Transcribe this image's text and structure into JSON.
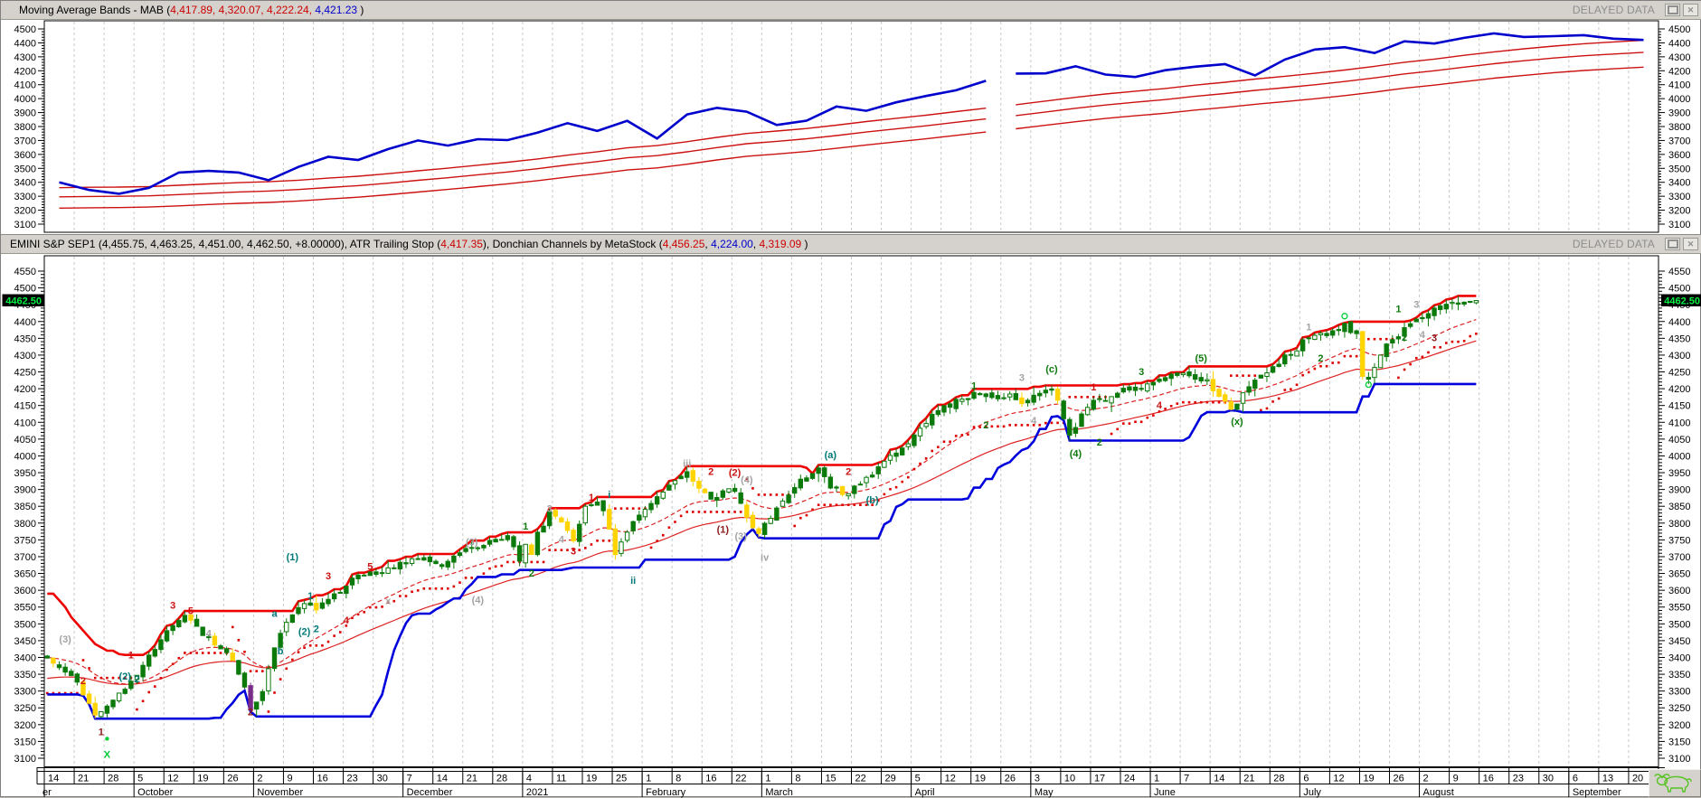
{
  "window": {
    "delayed_data": "DELAYED DATA",
    "restore_button": "restore",
    "close_button": "close",
    "panel1_title_segments": [
      {
        "text": "Moving Average Bands - MAB (",
        "color": "#000000"
      },
      {
        "text": "4,417.89, 4,320.07, 4,222.24,",
        "color": "#cc0000"
      },
      {
        "text": " 4,421.23",
        "color": "#0000cc"
      },
      {
        "text": " )",
        "color": "#000000"
      }
    ],
    "panel2_title_segments": [
      {
        "text": "EMINI S&P SEP1 (4,455.75, 4,463.25, 4,451.00, 4,462.50, +8.00000), ATR Trailing Stop (",
        "color": "#000000"
      },
      {
        "text": "4,417.35",
        "color": "#cc0000"
      },
      {
        "text": "), Donchian Channels by MetaStock (",
        "color": "#000000"
      },
      {
        "text": "4,456.25",
        "color": "#cc0000"
      },
      {
        "text": ", ",
        "color": "#000000"
      },
      {
        "text": "4,224.00",
        "color": "#0000cc"
      },
      {
        "text": ", ",
        "color": "#000000"
      },
      {
        "text": "4,319.09",
        "color": "#cc0000"
      },
      {
        "text": " )",
        "color": "#000000"
      }
    ]
  },
  "chart_data": [
    {
      "panel": "upper",
      "type": "line",
      "title": "Moving Average Bands - MAB",
      "ylim": [
        3100,
        4500
      ],
      "ytick_step": 100,
      "ytick_minor": 20,
      "grid": "weekly-vertical-dashed",
      "weeks": 54,
      "gap_after_index": 31,
      "series": [
        {
          "name": "close",
          "color": "#0000cc",
          "width": 2.6,
          "values": [
            3400,
            3345,
            3318,
            3360,
            3470,
            3482,
            3470,
            3415,
            3510,
            3583,
            3560,
            3638,
            3700,
            3663,
            3709,
            3703,
            3756,
            3824,
            3768,
            3841,
            3714,
            3886,
            3934,
            3906,
            3811,
            3842,
            3943,
            3913,
            3974,
            4019,
            4060,
            4128,
            4180,
            4181,
            4232,
            4173,
            4155,
            4204,
            4229,
            4247,
            4166,
            4280,
            4352,
            4369,
            4327,
            4411,
            4395,
            4436,
            4468,
            4442,
            4448,
            4455,
            4430,
            4421
          ]
        },
        {
          "name": "mab-bands",
          "color": "#cc1111",
          "width": 1.4,
          "sma_period": 20,
          "sma_seed": 3290,
          "upper_pct": 1.02,
          "lower_pct": 0.9755,
          "last_values": {
            "upper": 4417.89,
            "mid": 4320.07,
            "lower": 4222.24
          }
        }
      ],
      "last_close": 4421.23
    },
    {
      "panel": "lower",
      "type": "candlestick",
      "title": "EMINI S&P SEP1",
      "last_bar": {
        "open": 4455.75,
        "high": 4463.25,
        "low": 4451.0,
        "close": 4462.5,
        "change": "+8.00000"
      },
      "ylim": [
        3100,
        4550
      ],
      "ytick_step": 50,
      "ytick_minor": 10,
      "grid": "weekly-vertical-dashed",
      "bars": 240,
      "slots": 270,
      "close_anchors": [
        [
          0,
          3395
        ],
        [
          3,
          3355
        ],
        [
          5,
          3330
        ],
        [
          8,
          3228
        ],
        [
          10,
          3252
        ],
        [
          13,
          3312
        ],
        [
          15,
          3352
        ],
        [
          18,
          3425
        ],
        [
          20,
          3482
        ],
        [
          23,
          3532
        ],
        [
          26,
          3470
        ],
        [
          29,
          3422
        ],
        [
          31,
          3392
        ],
        [
          33,
          3308
        ],
        [
          34,
          3242
        ],
        [
          36,
          3300
        ],
        [
          38,
          3425
        ],
        [
          40,
          3512
        ],
        [
          43,
          3562
        ],
        [
          45,
          3548
        ],
        [
          48,
          3582
        ],
        [
          51,
          3635
        ],
        [
          54,
          3648
        ],
        [
          57,
          3662
        ],
        [
          60,
          3682
        ],
        [
          63,
          3702
        ],
        [
          66,
          3672
        ],
        [
          69,
          3712
        ],
        [
          72,
          3732
        ],
        [
          75,
          3745
        ],
        [
          77,
          3756
        ],
        [
          79,
          3690
        ],
        [
          80,
          3730
        ],
        [
          81,
          3700
        ],
        [
          82,
          3772
        ],
        [
          84,
          3826
        ],
        [
          86,
          3800
        ],
        [
          88,
          3750
        ],
        [
          90,
          3855
        ],
        [
          92,
          3862
        ],
        [
          93,
          3840
        ],
        [
          95,
          3714
        ],
        [
          97,
          3770
        ],
        [
          99,
          3826
        ],
        [
          101,
          3852
        ],
        [
          103,
          3890
        ],
        [
          105,
          3934
        ],
        [
          107,
          3950
        ],
        [
          109,
          3902
        ],
        [
          111,
          3872
        ],
        [
          113,
          3892
        ],
        [
          115,
          3902
        ],
        [
          117,
          3822
        ],
        [
          119,
          3762
        ],
        [
          122,
          3852
        ],
        [
          125,
          3902
        ],
        [
          127,
          3942
        ],
        [
          129,
          3962
        ],
        [
          131,
          3912
        ],
        [
          133,
          3882
        ],
        [
          136,
          3912
        ],
        [
          139,
          3962
        ],
        [
          141,
          4002
        ],
        [
          143,
          4022
        ],
        [
          146,
          4082
        ],
        [
          149,
          4132
        ],
        [
          152,
          4162
        ],
        [
          155,
          4182
        ],
        [
          158,
          4172
        ],
        [
          160,
          4182
        ],
        [
          163,
          4162
        ],
        [
          165,
          4182
        ],
        [
          167,
          4202
        ],
        [
          169,
          4172
        ],
        [
          171,
          4062
        ],
        [
          173,
          4122
        ],
        [
          175,
          4162
        ],
        [
          177,
          4172
        ],
        [
          180,
          4192
        ],
        [
          183,
          4202
        ],
        [
          186,
          4222
        ],
        [
          189,
          4242
        ],
        [
          191,
          4232
        ],
        [
          194,
          4222
        ],
        [
          197,
          4155
        ],
        [
          198,
          4142
        ],
        [
          200,
          4180
        ],
        [
          202,
          4222
        ],
        [
          204,
          4252
        ],
        [
          207,
          4292
        ],
        [
          209,
          4322
        ],
        [
          211,
          4352
        ],
        [
          213,
          4362
        ],
        [
          215,
          4372
        ],
        [
          217,
          4385
        ],
        [
          219,
          4362
        ],
        [
          220,
          4242
        ],
        [
          221,
          4225
        ],
        [
          223,
          4302
        ],
        [
          224,
          4332
        ],
        [
          226,
          4362
        ],
        [
          228,
          4392
        ],
        [
          230,
          4412
        ],
        [
          232,
          4432
        ],
        [
          234,
          4442
        ],
        [
          236,
          4452
        ],
        [
          238,
          4456
        ],
        [
          239,
          4462
        ]
      ],
      "indicators": {
        "donchian": {
          "period": 20,
          "upper_color": "#ee0000",
          "lower_color": "#0000dd",
          "width": 2.6,
          "last_values": {
            "upper": 4456.25,
            "lower": 4224.0,
            "mid": 4319.09
          },
          "seed_highs": [
            3580,
            3590,
            3590,
            3570,
            3550,
            3520,
            3500,
            3480,
            3460,
            3440,
            3430,
            3420,
            3420,
            3410,
            3400,
            3400,
            3395,
            3395,
            3390,
            3390
          ],
          "seed_lows": [
            3500,
            3480,
            3460,
            3430,
            3410,
            3395,
            3390,
            3380,
            3370,
            3360,
            3350,
            3345,
            3340,
            3335,
            3330,
            3320,
            3310,
            3300,
            3295,
            3290
          ]
        },
        "atr_trailing_stop": {
          "period": 14,
          "mult": 2.9,
          "color": "#dd0000",
          "last_value": 4417.35,
          "seed_atr": 38,
          "seed_stop": 3285
        },
        "ema_dashed": {
          "period": 20,
          "seed": 3400,
          "color": "#dd2222"
        },
        "ema_solid": {
          "period": 45,
          "seed": 3335,
          "color": "#dd2222"
        }
      },
      "price_tag": {
        "value": "4462.50",
        "price": 4462.5,
        "bg": "#000000",
        "fg": "#00ee44"
      },
      "candle_colors": {
        "up": "#0b7a0b",
        "hollow_fill": "#ffffff",
        "soft_down": "#ffd400",
        "hard_down": "#7b2d8b"
      },
      "annotation_colors": {
        "g": "#a3a3a3",
        "r": "#cc1111",
        "dr": "#8b1a1a",
        "gr": "#0e7a0e",
        "t": "#007878",
        "lg": "#00cc33"
      },
      "annotations": [
        [
          3,
          3455,
          "(3)",
          "g"
        ],
        [
          6,
          3332,
          "2",
          "r"
        ],
        [
          9,
          3180,
          "1",
          "dr"
        ],
        [
          10,
          3158,
          "dot",
          "lg"
        ],
        [
          10,
          3112,
          "X",
          "lg"
        ],
        [
          13,
          3345,
          "(2)",
          "t"
        ],
        [
          14,
          3408,
          "1",
          "r"
        ],
        [
          15,
          3337,
          "2",
          "t"
        ],
        [
          21,
          3556,
          "3",
          "r"
        ],
        [
          24,
          3540,
          "5",
          "r"
        ],
        [
          27,
          3472,
          "4",
          "g"
        ],
        [
          34,
          3238,
          "2",
          "dr"
        ],
        [
          38,
          3532,
          "a",
          "t"
        ],
        [
          39,
          3420,
          "b",
          "t"
        ],
        [
          41,
          3700,
          "(1)",
          "t"
        ],
        [
          43,
          3478,
          "(2)",
          "t"
        ],
        [
          44,
          3584,
          "1",
          "t"
        ],
        [
          45,
          3486,
          "2",
          "t"
        ],
        [
          47,
          3644,
          "3",
          "r"
        ],
        [
          50,
          3512,
          "4",
          "r"
        ],
        [
          54,
          3672,
          "5",
          "r"
        ],
        [
          57,
          3570,
          "x",
          "g"
        ],
        [
          71,
          3744,
          "(3)",
          "g"
        ],
        [
          72,
          3572,
          "(4)",
          "g"
        ],
        [
          80,
          3792,
          "1",
          "gr"
        ],
        [
          81,
          3652,
          "2",
          "gr"
        ],
        [
          84,
          3844,
          "3",
          "g"
        ],
        [
          86,
          3752,
          "4",
          "g"
        ],
        [
          88,
          3718,
          "3",
          "r"
        ],
        [
          91,
          3878,
          "1",
          "r"
        ],
        [
          94,
          3886,
          "i",
          "t"
        ],
        [
          98,
          3630,
          "ii",
          "t"
        ],
        [
          107,
          3978,
          "iii",
          "g"
        ],
        [
          111,
          3954,
          "2",
          "r"
        ],
        [
          113,
          3782,
          "(1)",
          "dr"
        ],
        [
          115,
          3952,
          "(2)",
          "r"
        ],
        [
          116,
          3762,
          "(3)",
          "g"
        ],
        [
          117,
          3930,
          "(4)",
          "g"
        ],
        [
          120,
          3698,
          "iv",
          "g"
        ],
        [
          131,
          4004,
          "(a)",
          "t"
        ],
        [
          134,
          3954,
          "2",
          "r"
        ],
        [
          138,
          3870,
          "(b)",
          "t"
        ],
        [
          155,
          4210,
          "1",
          "gr"
        ],
        [
          157,
          4092,
          "2",
          "gr"
        ],
        [
          163,
          4234,
          "3",
          "g"
        ],
        [
          165,
          4106,
          "4",
          "g"
        ],
        [
          168,
          4260,
          "(c)",
          "gr"
        ],
        [
          172,
          4008,
          "(4)",
          "gr"
        ],
        [
          175,
          4206,
          "1",
          "r"
        ],
        [
          176,
          4042,
          "2",
          "gr"
        ],
        [
          183,
          4252,
          "3",
          "gr"
        ],
        [
          186,
          4152,
          "4",
          "r"
        ],
        [
          193,
          4292,
          "(5)",
          "gr"
        ],
        [
          199,
          4104,
          "(x)",
          "gr"
        ],
        [
          211,
          4384,
          "1",
          "g"
        ],
        [
          213,
          4292,
          "2",
          "gr"
        ],
        [
          217,
          4416,
          "o",
          "lg"
        ],
        [
          221,
          4212,
          "o",
          "lg"
        ],
        [
          226,
          4438,
          "1",
          "gr"
        ],
        [
          227,
          4354,
          "2",
          "gr"
        ],
        [
          229,
          4452,
          "3",
          "g"
        ],
        [
          230,
          4362,
          "4",
          "g"
        ],
        [
          232,
          4352,
          "3",
          "dr"
        ]
      ]
    }
  ],
  "xaxis": {
    "left_partial_month": "er",
    "months": [
      {
        "label": "er",
        "weeks": [
          "14",
          "21",
          "28"
        ]
      },
      {
        "label": "October",
        "weeks": [
          "5",
          "12",
          "19",
          "26"
        ]
      },
      {
        "label": "November",
        "weeks": [
          "2",
          "9",
          "16",
          "23",
          "30"
        ]
      },
      {
        "label": "December",
        "weeks": [
          "7",
          "14",
          "21",
          "28"
        ]
      },
      {
        "label": "2021",
        "weeks": [
          "4",
          "11",
          "19",
          "25"
        ]
      },
      {
        "label": "February",
        "weeks": [
          "1",
          "8",
          "16",
          "22"
        ]
      },
      {
        "label": "March",
        "weeks": [
          "1",
          "8",
          "15",
          "22",
          "29"
        ]
      },
      {
        "label": "April",
        "weeks": [
          "5",
          "12",
          "19",
          "26"
        ]
      },
      {
        "label": "May",
        "weeks": [
          "3",
          "10",
          "17",
          "24"
        ]
      },
      {
        "label": "June",
        "weeks": [
          "1",
          "7",
          "14",
          "21",
          "28"
        ]
      },
      {
        "label": "July",
        "weeks": [
          "6",
          "12",
          "19",
          "26"
        ]
      },
      {
        "label": "August",
        "weeks": [
          "2",
          "9",
          "16",
          "23",
          "30"
        ]
      },
      {
        "label": "September",
        "weeks": [
          "6",
          "13",
          "20"
        ]
      }
    ]
  },
  "corner_icon": {
    "name": "bull-icon",
    "color": "#55c322"
  }
}
